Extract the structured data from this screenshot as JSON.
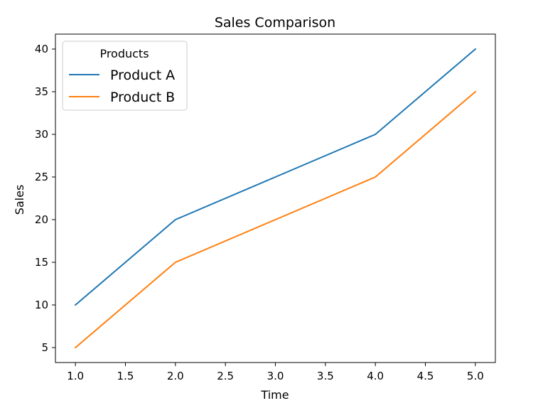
{
  "chart_data": {
    "type": "line",
    "title": "Sales Comparison",
    "xlabel": "Time",
    "ylabel": "Sales",
    "x": [
      1,
      2,
      3,
      4,
      5
    ],
    "series": [
      {
        "name": "Product A",
        "values": [
          10,
          20,
          25,
          30,
          40
        ],
        "color": "#1f77b4"
      },
      {
        "name": "Product B",
        "values": [
          5,
          15,
          20,
          25,
          35
        ],
        "color": "#ff7f0e"
      }
    ],
    "xlim": [
      0.8,
      5.2
    ],
    "ylim": [
      3.25,
      41.75
    ],
    "xticks": [
      1.0,
      1.5,
      2.0,
      2.5,
      3.0,
      3.5,
      4.0,
      4.5,
      5.0
    ],
    "xtick_labels": [
      "1.0",
      "1.5",
      "2.0",
      "2.5",
      "3.0",
      "3.5",
      "4.0",
      "4.5",
      "5.0"
    ],
    "yticks": [
      5,
      10,
      15,
      20,
      25,
      30,
      35,
      40
    ],
    "ytick_labels": [
      "5",
      "10",
      "15",
      "20",
      "25",
      "30",
      "35",
      "40"
    ],
    "legend": {
      "title": "Products",
      "placement": "top-left"
    },
    "grid": false
  }
}
